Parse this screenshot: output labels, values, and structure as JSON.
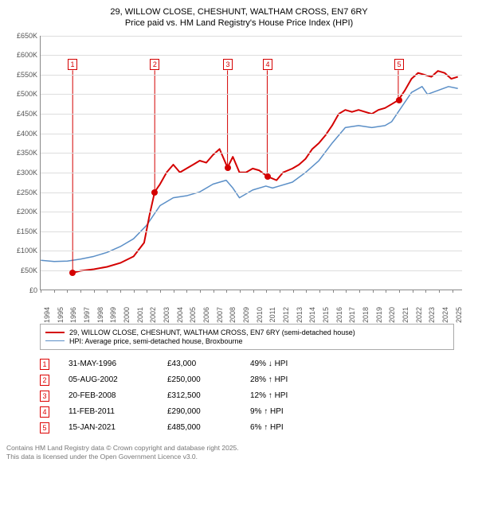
{
  "title_line1": "29, WILLOW CLOSE, CHESHUNT, WALTHAM CROSS, EN7 6RY",
  "title_line2": "Price paid vs. HM Land Registry's House Price Index (HPI)",
  "chart": {
    "type": "line",
    "x_range": [
      1994,
      2025.8
    ],
    "y_range_k": [
      0,
      650
    ],
    "y_tick_step_k": 50,
    "y_tick_prefix": "£",
    "y_tick_suffix": "K",
    "y_zero_label": "£0",
    "x_ticks": [
      1994,
      1995,
      1996,
      1997,
      1998,
      1999,
      2000,
      2001,
      2002,
      2003,
      2004,
      2005,
      2006,
      2007,
      2008,
      2009,
      2010,
      2011,
      2012,
      2013,
      2014,
      2015,
      2016,
      2017,
      2018,
      2019,
      2020,
      2021,
      2022,
      2023,
      2024,
      2025
    ],
    "grid_color": "#dddddd",
    "axis_color": "#888888",
    "background_color": "#ffffff",
    "series": {
      "price_paid": {
        "color": "#d40000",
        "width": 2,
        "points": [
          [
            1996.4,
            43
          ],
          [
            2002.6,
            250
          ],
          [
            2008.1,
            312.5
          ],
          [
            2011.1,
            290
          ],
          [
            2021.0,
            485
          ]
        ],
        "dense": [
          [
            1996.4,
            43
          ],
          [
            1997,
            48
          ],
          [
            1998,
            52
          ],
          [
            1999,
            58
          ],
          [
            2000,
            68
          ],
          [
            2001,
            85
          ],
          [
            2001.8,
            120
          ],
          [
            2002.2,
            190
          ],
          [
            2002.6,
            250
          ],
          [
            2003,
            270
          ],
          [
            2003.5,
            300
          ],
          [
            2004,
            320
          ],
          [
            2004.5,
            300
          ],
          [
            2005,
            310
          ],
          [
            2005.5,
            320
          ],
          [
            2006,
            330
          ],
          [
            2006.5,
            325
          ],
          [
            2007,
            345
          ],
          [
            2007.5,
            360
          ],
          [
            2008.1,
            312.5
          ],
          [
            2008.5,
            340
          ],
          [
            2009,
            300
          ],
          [
            2009.5,
            300
          ],
          [
            2010,
            310
          ],
          [
            2010.5,
            305
          ],
          [
            2011.1,
            290
          ],
          [
            2011.8,
            280
          ],
          [
            2012.3,
            300
          ],
          [
            2013,
            310
          ],
          [
            2013.5,
            320
          ],
          [
            2014,
            335
          ],
          [
            2014.5,
            360
          ],
          [
            2015,
            375
          ],
          [
            2015.5,
            395
          ],
          [
            2016,
            420
          ],
          [
            2016.5,
            450
          ],
          [
            2017,
            460
          ],
          [
            2017.5,
            455
          ],
          [
            2018,
            460
          ],
          [
            2018.5,
            455
          ],
          [
            2019,
            450
          ],
          [
            2019.5,
            460
          ],
          [
            2020,
            465
          ],
          [
            2020.5,
            475
          ],
          [
            2021.0,
            485
          ],
          [
            2021.5,
            510
          ],
          [
            2022,
            540
          ],
          [
            2022.5,
            555
          ],
          [
            2023,
            550
          ],
          [
            2023.5,
            545
          ],
          [
            2024,
            560
          ],
          [
            2024.5,
            555
          ],
          [
            2025,
            540
          ],
          [
            2025.5,
            545
          ]
        ]
      },
      "hpi": {
        "color": "#5b8fc7",
        "width": 1.5,
        "dense": [
          [
            1994,
            75
          ],
          [
            1995,
            72
          ],
          [
            1996,
            73
          ],
          [
            1997,
            78
          ],
          [
            1998,
            85
          ],
          [
            1999,
            95
          ],
          [
            2000,
            110
          ],
          [
            2001,
            130
          ],
          [
            2002,
            165
          ],
          [
            2002.6,
            195
          ],
          [
            2003,
            215
          ],
          [
            2004,
            235
          ],
          [
            2005,
            240
          ],
          [
            2006,
            250
          ],
          [
            2007,
            270
          ],
          [
            2008,
            280
          ],
          [
            2008.5,
            260
          ],
          [
            2009,
            235
          ],
          [
            2010,
            255
          ],
          [
            2011,
            265
          ],
          [
            2011.5,
            260
          ],
          [
            2012,
            265
          ],
          [
            2013,
            275
          ],
          [
            2014,
            300
          ],
          [
            2015,
            330
          ],
          [
            2016,
            375
          ],
          [
            2017,
            415
          ],
          [
            2018,
            420
          ],
          [
            2019,
            415
          ],
          [
            2020,
            420
          ],
          [
            2020.5,
            430
          ],
          [
            2021,
            455
          ],
          [
            2022,
            505
          ],
          [
            2022.8,
            520
          ],
          [
            2023.2,
            500
          ],
          [
            2024,
            510
          ],
          [
            2024.8,
            520
          ],
          [
            2025.5,
            515
          ]
        ]
      }
    },
    "markers": [
      {
        "n": "1",
        "year": 1996.4,
        "price_k": 43,
        "box_top_k": 590
      },
      {
        "n": "2",
        "year": 2002.6,
        "price_k": 250,
        "box_top_k": 590
      },
      {
        "n": "3",
        "year": 2008.1,
        "price_k": 312.5,
        "box_top_k": 590
      },
      {
        "n": "4",
        "year": 2011.1,
        "price_k": 290,
        "box_top_k": 590
      },
      {
        "n": "5",
        "year": 2021.0,
        "price_k": 485,
        "box_top_k": 590
      }
    ],
    "marker_line_color": "#d40000",
    "marker_dot_color": "#d40000"
  },
  "legend": {
    "items": [
      {
        "color": "#d40000",
        "width": 2,
        "label": "29, WILLOW CLOSE, CHESHUNT, WALTHAM CROSS, EN7 6RY (semi-detached house)"
      },
      {
        "color": "#5b8fc7",
        "width": 1.5,
        "label": "HPI: Average price, semi-detached house, Broxbourne"
      }
    ]
  },
  "table": [
    {
      "n": "1",
      "date": "31-MAY-1996",
      "price": "£43,000",
      "diff": "49% ↓ HPI"
    },
    {
      "n": "2",
      "date": "05-AUG-2002",
      "price": "£250,000",
      "diff": "28% ↑ HPI"
    },
    {
      "n": "3",
      "date": "20-FEB-2008",
      "price": "£312,500",
      "diff": "12% ↑ HPI"
    },
    {
      "n": "4",
      "date": "11-FEB-2011",
      "price": "£290,000",
      "diff": "9% ↑ HPI"
    },
    {
      "n": "5",
      "date": "15-JAN-2021",
      "price": "£485,000",
      "diff": "6% ↑ HPI"
    }
  ],
  "footer_line1": "Contains HM Land Registry data © Crown copyright and database right 2025.",
  "footer_line2": "This data is licensed under the Open Government Licence v3.0."
}
